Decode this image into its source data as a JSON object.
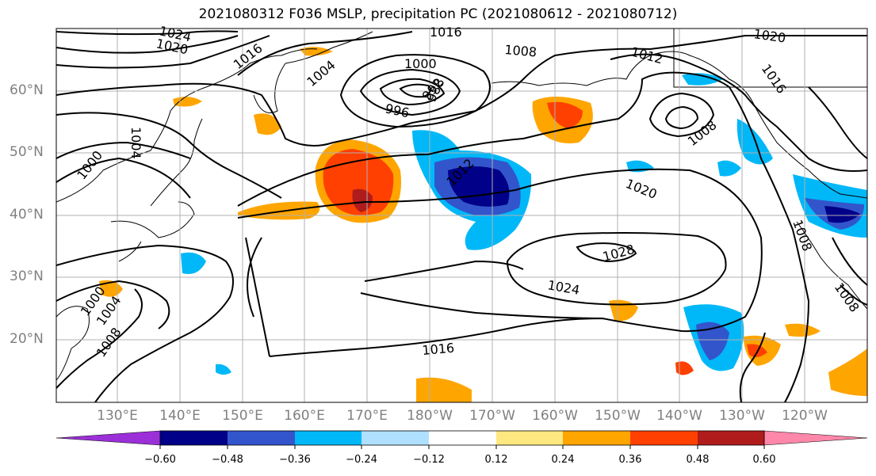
{
  "title": "2021080312 F036 MSLP, precipitation PC (2021080612 - 2021080712)",
  "lat_labels": [
    "60°N",
    "50°N",
    "40°N",
    "30°N",
    "20°N"
  ],
  "lon_labels": [
    "130°E",
    "140°E",
    "150°E",
    "160°E",
    "170°E",
    "180°W",
    "170°W",
    "160°W",
    "150°W",
    "140°W",
    "130°W",
    "120°W"
  ],
  "contour_labels": [
    "1024",
    "1020",
    "1016",
    "1016",
    "1004",
    "1000",
    "996",
    "988",
    "992",
    "1008",
    "1012",
    "1020",
    "1016",
    "1008",
    "1004",
    "1000",
    "1012",
    "1020",
    "1028",
    "1024",
    "1016",
    "1008",
    "1004",
    "1000",
    "1008",
    "1008"
  ],
  "colorbar": {
    "colors": [
      "#9b30d8",
      "#000088",
      "#3355cc",
      "#00b8f8",
      "#b0e0ff",
      "#ffffff",
      "#ffe880",
      "#ffa500",
      "#ff4000",
      "#b01c1c",
      "#ff88aa"
    ],
    "tick_labels": [
      "−0.60",
      "−0.48",
      "−0.36",
      "−0.24",
      "−0.12",
      "0.12",
      "0.24",
      "0.36",
      "0.48",
      "0.60"
    ]
  }
}
